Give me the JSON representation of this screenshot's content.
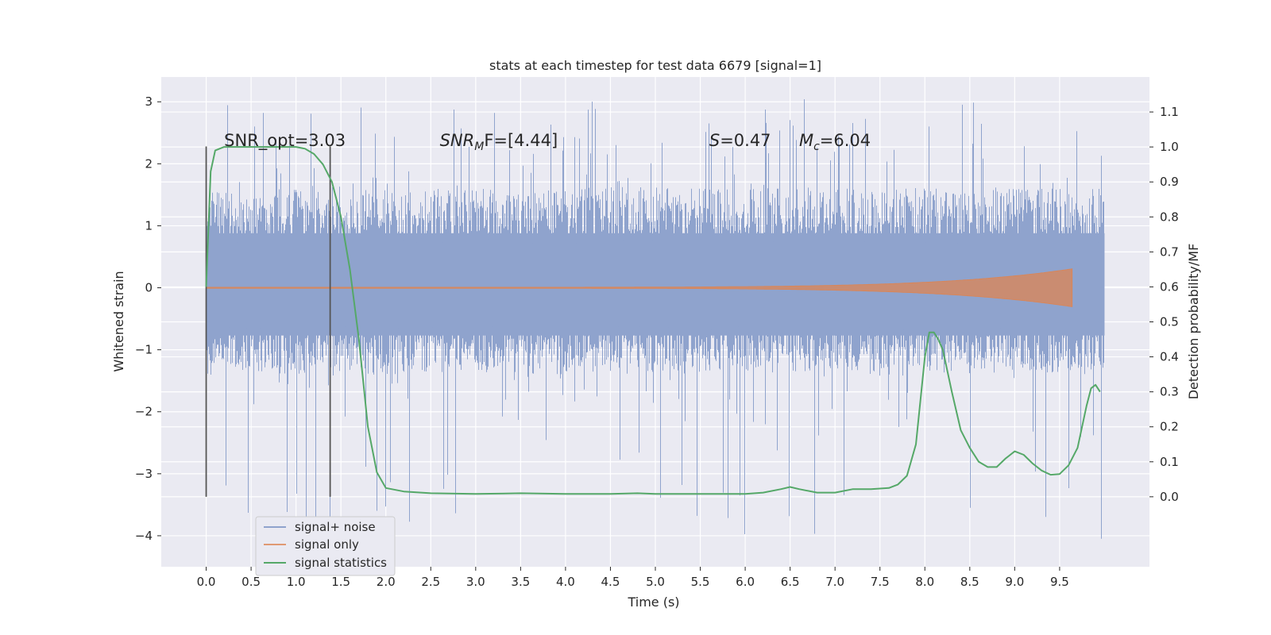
{
  "chart_data": {
    "type": "line",
    "title": "stats at each timestep for test data 6679 [signal=1]",
    "xlabel": "Time (s)",
    "ylabel": "Whitened strain",
    "y2label": "Detection probability/MF",
    "xlim": [
      -0.5,
      10.5
    ],
    "ylim": [
      -4.5,
      3.4
    ],
    "y2lim": [
      -0.2,
      1.2
    ],
    "x_ticks": [
      0.0,
      0.5,
      1.0,
      1.5,
      2.0,
      2.5,
      3.0,
      3.5,
      4.0,
      4.5,
      5.0,
      5.5,
      6.0,
      6.5,
      7.0,
      7.5,
      8.0,
      8.5,
      9.0,
      9.5
    ],
    "x_tick_labels": [
      "0.0",
      "0.5",
      "1.0",
      "1.5",
      "2.0",
      "2.5",
      "3.0",
      "3.5",
      "4.0",
      "4.5",
      "5.0",
      "5.5",
      "6.0",
      "6.5",
      "7.0",
      "7.5",
      "8.0",
      "8.5",
      "9.0",
      "9.5"
    ],
    "y_ticks": [
      -4,
      -3,
      -2,
      -1,
      0,
      1,
      2,
      3
    ],
    "y_tick_labels": [
      "−4",
      "−3",
      "−2",
      "−1",
      "0",
      "1",
      "2",
      "3"
    ],
    "y2_ticks": [
      0.0,
      0.1,
      0.2,
      0.3,
      0.4,
      0.5,
      0.6,
      0.7,
      0.8,
      0.9,
      1.0,
      1.1
    ],
    "y2_tick_labels": [
      "0.0",
      "0.1",
      "0.2",
      "0.3",
      "0.4",
      "0.5",
      "0.6",
      "0.7",
      "0.8",
      "0.9",
      "1.0",
      "1.1"
    ],
    "grid": true,
    "legend_position": "lower-left",
    "colors": {
      "background": "#eaeaf2",
      "grid": "#ffffff",
      "noise": "#8fa3cd",
      "signal": "#dd8452",
      "statistics": "#55a868",
      "marker": "#555555"
    },
    "series": [
      {
        "name": "signal+ noise",
        "kind": "noise-band",
        "x_range": [
          0.0,
          10.0
        ],
        "core_range": [
          -1.4,
          1.6
        ],
        "extreme_range": [
          -4.05,
          3.05
        ]
      },
      {
        "name": "signal only",
        "kind": "chirp",
        "x_range": [
          0.0,
          9.65
        ],
        "peak_amplitude": 0.3
      },
      {
        "name": "signal statistics",
        "axis": "right",
        "x": [
          0.0,
          0.05,
          0.1,
          0.15,
          0.2,
          0.3,
          0.5,
          0.8,
          1.0,
          1.1,
          1.2,
          1.3,
          1.4,
          1.5,
          1.6,
          1.7,
          1.8,
          1.9,
          2.0,
          2.2,
          2.5,
          3.0,
          3.5,
          4.0,
          4.5,
          4.8,
          5.0,
          5.5,
          6.0,
          6.2,
          6.4,
          6.5,
          6.6,
          6.8,
          7.0,
          7.2,
          7.4,
          7.6,
          7.7,
          7.8,
          7.9,
          8.0,
          8.05,
          8.1,
          8.15,
          8.2,
          8.3,
          8.4,
          8.5,
          8.6,
          8.7,
          8.8,
          8.9,
          9.0,
          9.1,
          9.2,
          9.3,
          9.4,
          9.5,
          9.6,
          9.7,
          9.8,
          9.85,
          9.9,
          9.95
        ],
        "values": [
          0.6,
          0.93,
          0.99,
          0.995,
          1.0,
          1.0,
          1.0,
          1.0,
          1.0,
          0.995,
          0.98,
          0.95,
          0.9,
          0.8,
          0.65,
          0.45,
          0.2,
          0.07,
          0.025,
          0.015,
          0.01,
          0.008,
          0.01,
          0.008,
          0.008,
          0.01,
          0.008,
          0.008,
          0.008,
          0.012,
          0.022,
          0.028,
          0.022,
          0.012,
          0.012,
          0.022,
          0.022,
          0.025,
          0.035,
          0.06,
          0.15,
          0.4,
          0.47,
          0.47,
          0.45,
          0.42,
          0.3,
          0.19,
          0.14,
          0.1,
          0.085,
          0.085,
          0.11,
          0.13,
          0.12,
          0.095,
          0.075,
          0.063,
          0.065,
          0.09,
          0.14,
          0.26,
          0.31,
          0.32,
          0.3
        ]
      }
    ],
    "vertical_markers": [
      0.0,
      1.38
    ],
    "annotations": [
      {
        "x": 0.2,
        "text": "SNR_opt=3.03"
      },
      {
        "x": 2.6,
        "text": "SNR",
        "sub": "M",
        "rest": "F=[4.44]"
      },
      {
        "x": 5.6,
        "text": "S",
        "rest": "=0.47"
      },
      {
        "x": 6.6,
        "text": "M",
        "sub": "c",
        "rest": "=6.04"
      }
    ]
  }
}
